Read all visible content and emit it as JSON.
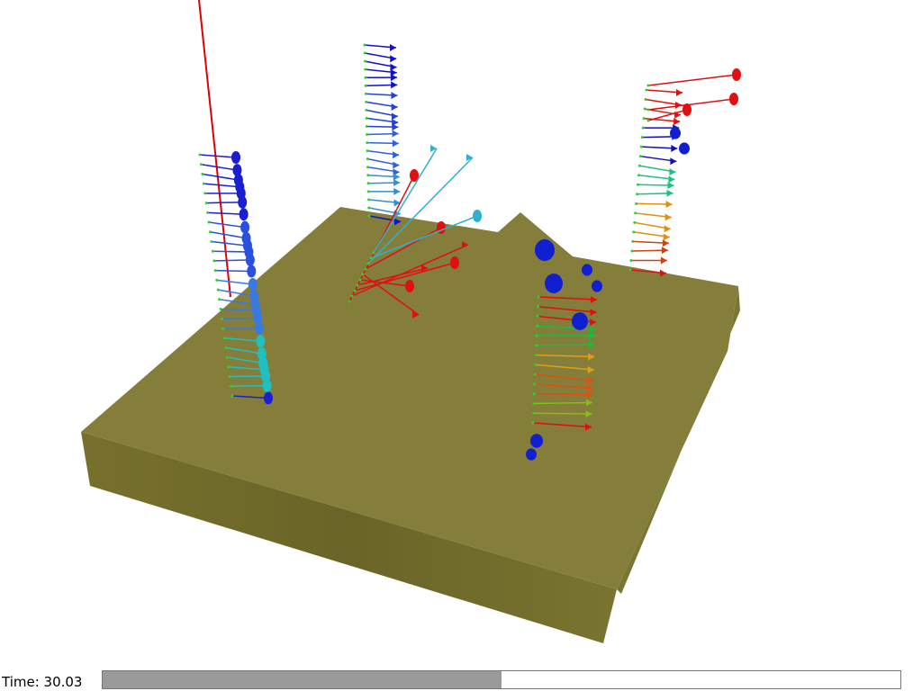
{
  "status": {
    "time_label": "Time: 30.03",
    "progress": 50
  }
}
